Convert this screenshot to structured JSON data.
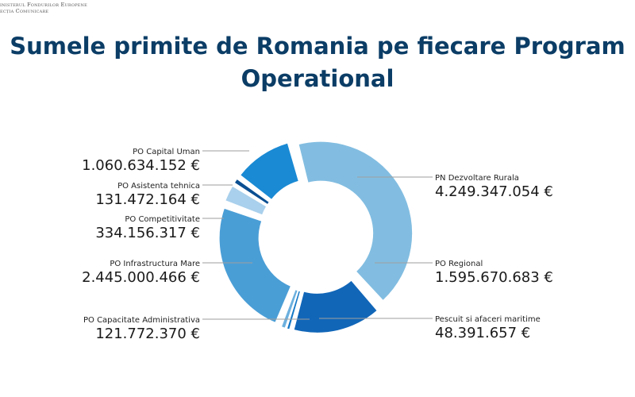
{
  "header": {
    "org_line1": "inisterul Fondurilor Europene",
    "org_line2": "ecția Comunicare"
  },
  "chart_data": {
    "type": "pie",
    "title_line1": "Sumele primite de Romania pe fiecare Program",
    "title_line2": "Operational",
    "slices": [
      {
        "label": "PN Dezvoltare Rurala",
        "value": 4249347054,
        "value_text": "4.249.347.054 €",
        "color": "#82bde1"
      },
      {
        "label": "PO Regional",
        "value": 1595670683,
        "value_text": "1.595.670.683 €",
        "color": "#1166b8"
      },
      {
        "label": "Pescuit si afaceri maritime",
        "value": 48391657,
        "value_text": "48.391.657 €",
        "color": "#1478c6"
      },
      {
        "label": "PO Capacitate Administrativa",
        "value": 121772370,
        "value_text": "121.772.370 €",
        "color": "#6cb0de"
      },
      {
        "label": "PO Infrastructura Mare",
        "value": 2445000466,
        "value_text": "2.445.000.466 €",
        "color": "#4a9ed6"
      },
      {
        "label": "PO Competitivitate",
        "value": 334156317,
        "value_text": "334.156.317 €",
        "color": "#a9d0ec"
      },
      {
        "label": "PO Asistenta tehnica",
        "value": 131472164,
        "value_text": "131.472.164 €",
        "color": "#0b4f92"
      },
      {
        "label": "PO Capital Uman",
        "value": 1060634152,
        "value_text": "1.060.634.152 €",
        "color": "#1a8ad4"
      }
    ]
  }
}
